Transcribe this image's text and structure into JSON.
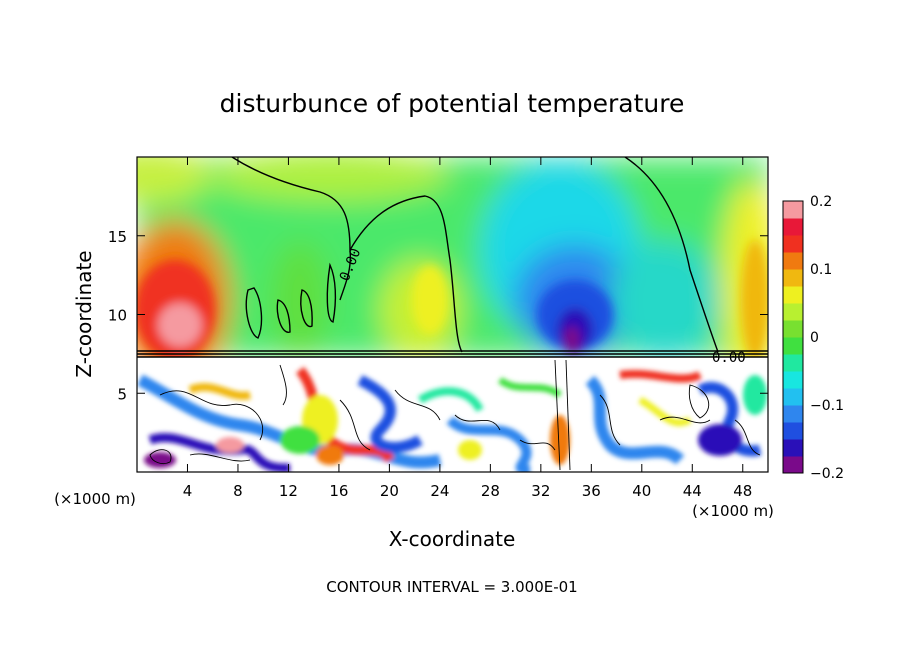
{
  "chart_data": {
    "type": "heatmap",
    "title": "disturbunce of potential temperature",
    "xlabel": "X-coordinate",
    "ylabel": "Z-coordinate",
    "xlim": [
      0,
      50
    ],
    "ylim": [
      0,
      20
    ],
    "x_ticks": [
      "4",
      "8",
      "12",
      "16",
      "20",
      "24",
      "28",
      "32",
      "36",
      "40",
      "44",
      "48"
    ],
    "x_tick_values": [
      4,
      8,
      12,
      16,
      20,
      24,
      28,
      32,
      36,
      40,
      44,
      48
    ],
    "y_ticks": [
      "5",
      "10",
      "15"
    ],
    "y_tick_values": [
      5,
      10,
      15
    ],
    "x_unit": "(×1000 m)",
    "x_unit_right": "(×1000 m)",
    "colorbar": {
      "ticks": [
        "0.2",
        "0.1",
        "0",
        "−0.1",
        "−0.2"
      ],
      "tick_values": [
        0.2,
        0.1,
        0,
        -0.1,
        -0.2
      ],
      "range": [
        -0.2,
        0.2
      ],
      "colors": [
        "#7a0a8a",
        "#2a10b8",
        "#1f4fe0",
        "#2f86ee",
        "#22c0f0",
        "#18e6e0",
        "#20e8a0",
        "#40e040",
        "#78e030",
        "#b8f030",
        "#eef020",
        "#f0b810",
        "#f07a10",
        "#f03020",
        "#e81838",
        "#f59aa0"
      ]
    },
    "contour_labels": [
      "0.00",
      "0.00"
    ],
    "footer": "CONTOUR INTERVAL = 3.000E-01"
  }
}
